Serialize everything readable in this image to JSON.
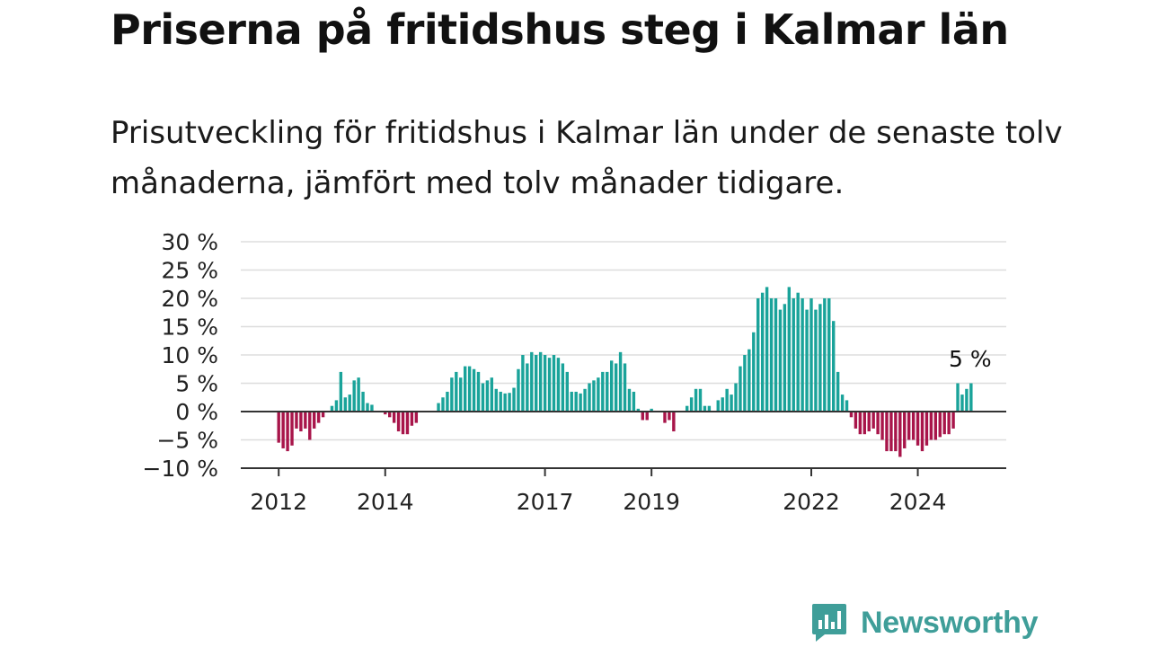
{
  "title": "Priserna på fritidshus steg i Kalmar län",
  "subtitle": "Prisutveckling för fritidshus i Kalmar län under de senaste tolv månaderna, jämfört med tolv månader tidigare.",
  "brand": {
    "name": "Newsworthy",
    "color": "#3f9e99"
  },
  "colors": {
    "positive": "#1aa39a",
    "negative": "#a8154a",
    "grid": "#dddddd",
    "axis": "#333333"
  },
  "chart_data": {
    "type": "bar",
    "title": "Priserna på fritidshus steg i Kalmar län",
    "xlabel": "",
    "ylabel": "",
    "unit": "%",
    "ylim": [
      -10,
      30
    ],
    "yticks": [
      -10,
      -5,
      0,
      5,
      10,
      15,
      20,
      25,
      30
    ],
    "ytick_labels": [
      "−10 %",
      "−5 %",
      "0 %",
      "5 %",
      "10 %",
      "15 %",
      "20 %",
      "25 %",
      "30 %"
    ],
    "xtick_labels": [
      "2012",
      "2014",
      "2017",
      "2019",
      "2022",
      "2024"
    ],
    "grid": true,
    "annotations": [
      {
        "text": "5 %"
      }
    ],
    "series": [
      {
        "start": "2012-01",
        "frequency": "monthly",
        "values": [
          -5.5,
          -6.5,
          -7,
          -6,
          -3,
          -3.5,
          -3,
          -5,
          -3,
          -2,
          -1,
          0,
          1,
          2,
          7,
          2.5,
          3,
          5.5,
          6,
          3.5,
          1.5,
          1.2,
          0,
          0,
          -0.5,
          -1,
          -2,
          -3.5,
          -4,
          -4,
          -2.5,
          -2,
          0,
          0,
          0,
          0,
          1.5,
          2.5,
          3.5,
          6,
          7,
          6,
          8,
          8,
          7.5,
          7,
          5,
          5.5,
          6,
          4,
          3.5,
          3.2,
          3.3,
          4.2,
          7.5,
          10,
          8.5,
          10.5,
          10,
          10.5,
          10,
          9.5,
          10,
          9.5,
          8.5,
          7,
          3.5,
          3.5,
          3.2,
          4,
          5,
          5.5,
          6,
          7,
          7,
          9,
          8.5,
          10.5,
          8.5,
          4,
          3.5,
          0.5,
          -1.5,
          -1.5,
          0.5,
          0,
          0,
          -2,
          -1.5,
          -3.5,
          0,
          0,
          1,
          2.5,
          4,
          4,
          1,
          1,
          0,
          2,
          2.5,
          4,
          3,
          5,
          8,
          10,
          11,
          14,
          20,
          21,
          22,
          20,
          20,
          18,
          19,
          22,
          20,
          21,
          20,
          18,
          20,
          18,
          19,
          20,
          20,
          16,
          7,
          3,
          2,
          -1,
          -3,
          -4,
          -4,
          -3.5,
          -3,
          -4,
          -5,
          -7,
          -7,
          -7,
          -8,
          -6.5,
          -5,
          -5,
          -6,
          -7,
          -6,
          -5,
          -5,
          -4.5,
          -4,
          -4,
          -3,
          5,
          3,
          4,
          5
        ]
      }
    ]
  }
}
